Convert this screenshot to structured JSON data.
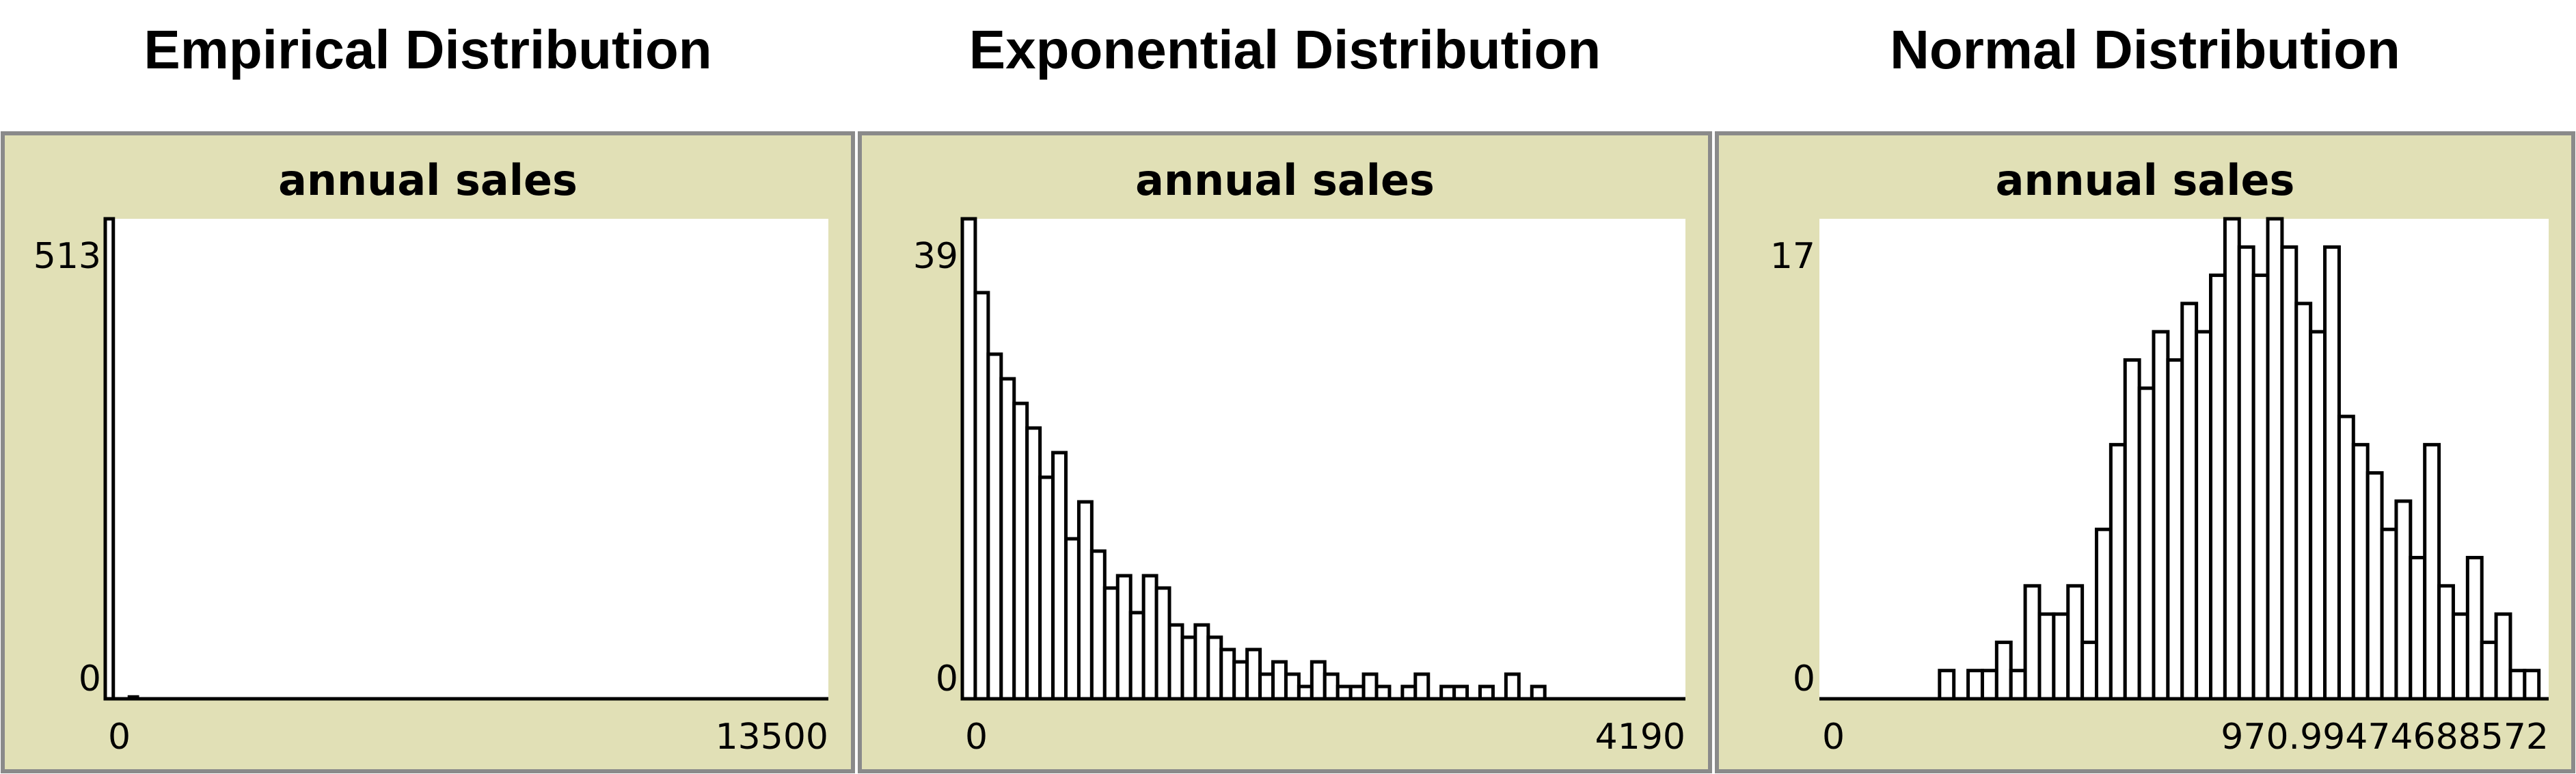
{
  "chart_data": [
    {
      "type": "histogram",
      "title": "Empirical Distribution",
      "plot_title": "annual sales",
      "bins": [
        0,
        150,
        300,
        450,
        600
      ],
      "values": [
        513,
        0,
        0,
        2
      ],
      "xlim": [
        0,
        13500
      ],
      "xticks": [
        0,
        13500
      ],
      "ylim": [
        0,
        513
      ],
      "yticks": [
        0,
        513
      ],
      "color": "#000000"
    },
    {
      "type": "histogram",
      "title": "Exponential Distribution",
      "plot_title": "annual sales",
      "bins": [
        0,
        75,
        150,
        225,
        300,
        375,
        450,
        525,
        600,
        675,
        750,
        825,
        900,
        975,
        1050,
        1125,
        1200,
        1275,
        1350,
        1425,
        1500,
        1575,
        1650,
        1725,
        1800,
        1875,
        1950,
        2025,
        2100,
        2175,
        2250,
        2325,
        2400,
        2475,
        2550,
        2625,
        2700,
        2775,
        2850,
        2925,
        3000,
        3075,
        3150,
        3225,
        3300,
        3375
      ],
      "values": [
        39,
        33,
        28,
        26,
        24,
        22,
        18,
        20,
        13,
        16,
        12,
        9,
        10,
        7,
        10,
        9,
        6,
        5,
        6,
        5,
        4,
        3,
        4,
        2,
        3,
        2,
        1,
        3,
        2,
        1,
        1,
        2,
        1,
        0,
        1,
        2,
        0,
        1,
        1,
        0,
        1,
        0,
        2,
        0,
        1
      ],
      "xlim": [
        0,
        4190
      ],
      "xticks": [
        0,
        4190
      ],
      "ylim": [
        0,
        39
      ],
      "yticks": [
        0,
        39
      ],
      "color": "#000000"
    },
    {
      "type": "histogram",
      "title": "Normal Distribution",
      "plot_title": "annual sales",
      "bins": [
        160,
        179,
        198,
        217,
        236,
        255,
        274,
        293,
        312,
        331,
        350,
        369,
        388,
        407,
        426,
        445,
        464,
        483,
        502,
        521,
        540,
        559,
        578,
        597,
        616,
        635,
        654,
        673,
        692,
        711,
        730,
        749,
        768,
        787,
        806,
        825,
        844,
        863,
        882,
        901,
        920,
        939,
        958
      ],
      "values": [
        1,
        0,
        1,
        1,
        2,
        1,
        4,
        3,
        3,
        4,
        2,
        6,
        9,
        12,
        11,
        13,
        12,
        14,
        13,
        15,
        17,
        16,
        15,
        17,
        16,
        14,
        13,
        16,
        10,
        9,
        8,
        6,
        7,
        5,
        9,
        4,
        3,
        5,
        2,
        3,
        1,
        1
      ],
      "xlim": [
        0,
        970.99474688572
      ],
      "xticks": [
        0,
        970.99474688572
      ],
      "ylim": [
        0,
        17
      ],
      "yticks": [
        0,
        17
      ],
      "color": "#000000"
    }
  ]
}
